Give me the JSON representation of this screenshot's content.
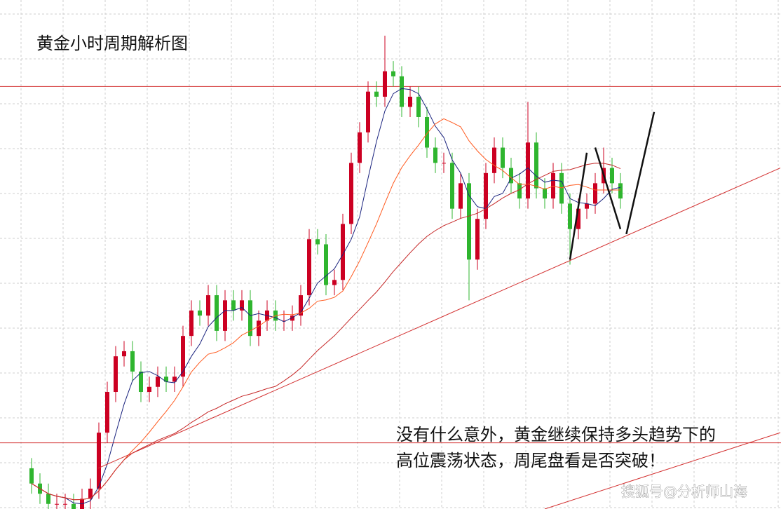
{
  "chart_data": {
    "type": "candlestick",
    "title": "黄金小时周期解析图",
    "annotation": [
      "没有什么意外，黄金继续保持多头趋势下的",
      "高位震荡状态，周尾盘看是否突破！"
    ],
    "watermark": "搜狐号@分析师山海",
    "xlim": [
      0,
      89
    ],
    "ylim": [
      0,
      100
    ],
    "up_color": "#cc0022",
    "down_color": "#2fb52f",
    "series": {
      "open": [
        8,
        5,
        3,
        1,
        1,
        1,
        0,
        2,
        4,
        15,
        23,
        30,
        31,
        27,
        23,
        24,
        26,
        25,
        26,
        34,
        39,
        38,
        42,
        35,
        41,
        39,
        41,
        34,
        37,
        39,
        37,
        37,
        38,
        42,
        53,
        52,
        44,
        45,
        56,
        68,
        74,
        82,
        81,
        86,
        85,
        79,
        81,
        77,
        71,
        68,
        68,
        59,
        64,
        49,
        57,
        66,
        71,
        67,
        64,
        61,
        72,
        63,
        61,
        66,
        60,
        55,
        59,
        60,
        64,
        67,
        64
      ],
      "high": [
        10,
        7,
        5,
        3,
        3,
        3,
        4,
        6,
        17,
        25,
        32,
        33,
        33,
        29,
        26,
        28,
        28,
        28,
        36,
        41,
        41,
        44,
        44,
        43,
        43,
        43,
        43,
        39,
        41,
        41,
        39,
        40,
        44,
        55,
        55,
        54,
        47,
        58,
        70,
        76,
        84,
        84,
        93,
        88,
        87,
        83,
        83,
        79,
        73,
        70,
        70,
        66,
        66,
        59,
        68,
        73,
        73,
        69,
        66,
        80,
        74,
        65,
        68,
        68,
        62,
        61,
        62,
        66,
        71,
        69,
        66
      ],
      "low": [
        3,
        1,
        0,
        0,
        0,
        0,
        0,
        0,
        2,
        13,
        21,
        28,
        25,
        21,
        21,
        22,
        23,
        23,
        24,
        32,
        36,
        36,
        33,
        33,
        37,
        37,
        32,
        32,
        35,
        35,
        35,
        35,
        36,
        40,
        50,
        42,
        42,
        43,
        54,
        66,
        72,
        79,
        79,
        83,
        77,
        77,
        75,
        69,
        66,
        66,
        57,
        57,
        41,
        47,
        55,
        64,
        65,
        62,
        59,
        59,
        61,
        59,
        59,
        58,
        48,
        53,
        57,
        58,
        62,
        62,
        59
      ],
      "close": [
        5,
        3,
        1,
        1,
        1,
        0,
        2,
        4,
        15,
        23,
        30,
        31,
        27,
        23,
        24,
        26,
        25,
        26,
        34,
        39,
        38,
        42,
        35,
        41,
        39,
        41,
        34,
        37,
        39,
        37,
        37,
        38,
        42,
        53,
        52,
        44,
        45,
        56,
        68,
        74,
        82,
        81,
        86,
        85,
        79,
        81,
        77,
        71,
        68,
        68,
        59,
        64,
        49,
        57,
        66,
        71,
        67,
        64,
        61,
        72,
        63,
        61,
        66,
        60,
        55,
        59,
        60,
        64,
        67,
        64,
        61
      ]
    },
    "moving_averages": [
      {
        "period": 5,
        "color": "#1a237e"
      },
      {
        "period": 12,
        "color": "#ff5a1f"
      },
      {
        "period": 30,
        "color": "#c62828"
      }
    ],
    "hlines": [
      {
        "value": 83,
        "color": "#d32f2f"
      },
      {
        "value": 13,
        "color": "#d32f2f"
      }
    ],
    "drawings": [
      {
        "color": "#d32f2f",
        "x": [
          7.9,
          89
        ],
        "y": [
          8,
          67
        ]
      },
      {
        "color": "#d32f2f",
        "x": [
          61,
          89
        ],
        "y": [
          0,
          15
        ]
      },
      {
        "color": "#111111",
        "x": [
          64,
          66
        ],
        "y": [
          49,
          70
        ]
      },
      {
        "color": "#111111",
        "x": [
          67,
          70
        ],
        "y": [
          71,
          55
        ]
      },
      {
        "color": "#111111",
        "x": [
          70.7,
          74
        ],
        "y": [
          54,
          78
        ]
      }
    ]
  }
}
